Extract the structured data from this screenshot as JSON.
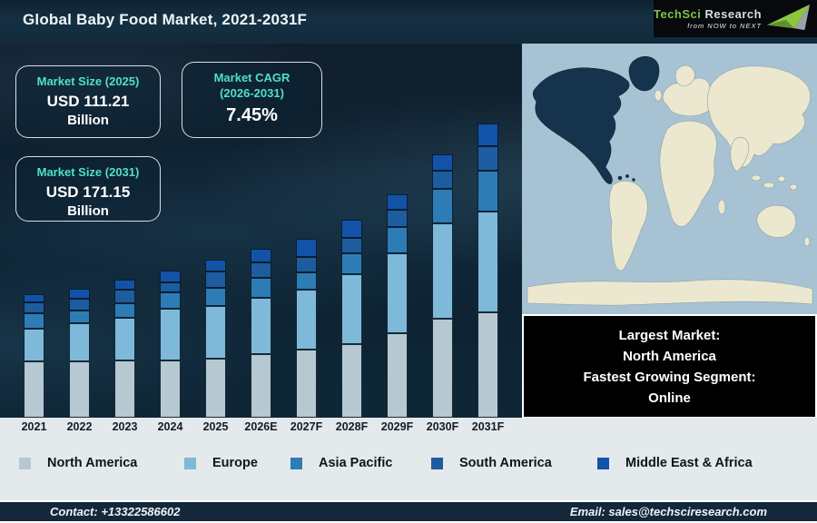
{
  "header": {
    "title": "Global Baby Food Market, 2021-2031F",
    "logo": {
      "part1": "TechSci",
      "part2": "Research",
      "tagline": "from NOW to NEXT",
      "brand_green": "#7dc242"
    }
  },
  "info_boxes": {
    "size_2025": {
      "label": "Market Size (2025)",
      "value": "USD 111.21",
      "unit": "Billion"
    },
    "cagr": {
      "label": "Market CAGR",
      "label2": "(2026-2031)",
      "value": "7.45%"
    },
    "size_2031": {
      "label": "Market Size (2031)",
      "value": "USD 171.15",
      "unit": "Billion"
    }
  },
  "accent_teal": "#4fe0c8",
  "chart_data": {
    "type": "bar",
    "stacked": true,
    "title": "Global Baby Food Market, 2021-2031F",
    "xlabel": "",
    "ylabel": "",
    "grid": false,
    "legend_position": "bottom",
    "categories": [
      "2021",
      "2022",
      "2023",
      "2024",
      "2025",
      "2026E",
      "2027F",
      "2028F",
      "2029F",
      "2030F",
      "2031F"
    ],
    "series": [
      {
        "name": "North America",
        "color": "#b6c9d2",
        "values": [
          62,
          62,
          63,
          63,
          65,
          70,
          75,
          81,
          93,
          109,
          116
        ]
      },
      {
        "name": "Europe",
        "color": "#7fb9d9",
        "values": [
          36,
          42,
          47,
          57,
          58,
          62,
          66,
          77,
          88,
          105,
          111
        ]
      },
      {
        "name": "Asia Pacific",
        "color": "#2e7cb5",
        "values": [
          17,
          14,
          16,
          18,
          20,
          22,
          19,
          23,
          29,
          38,
          45
        ]
      },
      {
        "name": "South America",
        "color": "#1d5c9e",
        "values": [
          12,
          13,
          15,
          11,
          18,
          17,
          17,
          17,
          19,
          20,
          27
        ]
      },
      {
        "name": "Middle East & Africa",
        "color": "#1253a8",
        "values": [
          9,
          11,
          11,
          13,
          13,
          15,
          20,
          20,
          17,
          18,
          25
        ]
      }
    ],
    "value_note": "y-axis unlabeled; values are relative stacked-segment heights read from the image",
    "stated_totals": {
      "2025": "USD 111.21 Billion",
      "2031": "USD 171.15 Billion",
      "cagr_2026_2031": "7.45%"
    }
  },
  "map": {
    "highlighted_region": "North America",
    "ocean_color": "#a7c3d3",
    "land_color": "#ece7cf",
    "highlight_color": "#16334d"
  },
  "callout": {
    "lines": [
      "Largest Market:",
      "North America",
      "Fastest Growing Segment:",
      "Online"
    ]
  },
  "footer": {
    "contact": "Contact: +13322586602",
    "email": "Email: sales@techsciresearch.com"
  }
}
